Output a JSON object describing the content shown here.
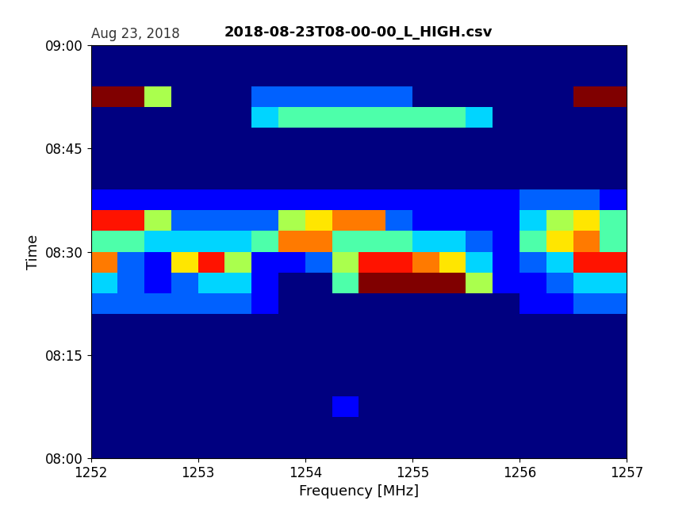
{
  "chart_data": {
    "type": "heatmap",
    "title": "2018-08-23T08-00-00_L_HIGH.csv",
    "subtitle": "Aug 23, 2018",
    "x_label": "Frequency [MHz]",
    "y_label": "Time",
    "xlim": [
      1252,
      1257
    ],
    "xticks": [
      1252,
      1253,
      1254,
      1255,
      1256,
      1257
    ],
    "ylim": [
      0,
      60
    ],
    "yticks": [
      {
        "value": 0,
        "label": "08:00"
      },
      {
        "value": 15,
        "label": "08:15"
      },
      {
        "value": 30,
        "label": "08:30"
      },
      {
        "value": 45,
        "label": "08:45"
      },
      {
        "value": 60,
        "label": "09:00"
      }
    ],
    "x": [
      1252.125,
      1252.375,
      1252.625,
      1252.875,
      1253.125,
      1253.375,
      1253.625,
      1253.875,
      1254.125,
      1254.375,
      1254.625,
      1254.875,
      1255.125,
      1255.375,
      1255.625,
      1255.875,
      1256.125,
      1256.375,
      1256.625,
      1256.875
    ],
    "y": [
      1.5,
      4.5,
      7.5,
      10.5,
      13.5,
      16.5,
      19.5,
      22.5,
      25.5,
      28.5,
      31.5,
      34.5,
      37.5,
      40.5,
      43.5,
      46.5,
      49.5,
      52.5,
      55.5,
      58.5
    ],
    "cells": [
      [
        1,
        1,
        1,
        1,
        1,
        1,
        1,
        1,
        1,
        1,
        1,
        1,
        1,
        1,
        1,
        1,
        1,
        1,
        1,
        1
      ],
      [
        1,
        1,
        1,
        1,
        1,
        1,
        1,
        1,
        1,
        1,
        1,
        1,
        1,
        1,
        1,
        1,
        1,
        1,
        1,
        1
      ],
      [
        1,
        1,
        1,
        1,
        1,
        1,
        1,
        1,
        1,
        2,
        1,
        1,
        1,
        1,
        1,
        1,
        1,
        1,
        1,
        1
      ],
      [
        1,
        1,
        1,
        1,
        1,
        1,
        1,
        1,
        1,
        1,
        1,
        1,
        1,
        1,
        1,
        1,
        1,
        1,
        1,
        1
      ],
      [
        1,
        1,
        1,
        1,
        1,
        1,
        1,
        1,
        1,
        1,
        1,
        1,
        1,
        1,
        1,
        1,
        1,
        1,
        1,
        1
      ],
      [
        1,
        1,
        1,
        1,
        1,
        1,
        1,
        1,
        1,
        1,
        1,
        1,
        1,
        1,
        1,
        1,
        1,
        1,
        1,
        1
      ],
      [
        1,
        1,
        1,
        1,
        1,
        1,
        1,
        1,
        1,
        1,
        1,
        1,
        1,
        1,
        1,
        1,
        1,
        1,
        1,
        1
      ],
      [
        3,
        3,
        3,
        3,
        3,
        3,
        2,
        1,
        1,
        1,
        1,
        1,
        1,
        1,
        1,
        1,
        2,
        2,
        3,
        3
      ],
      [
        4,
        3,
        2,
        3,
        4,
        4,
        2,
        1,
        1,
        5,
        10,
        10,
        10,
        10,
        6,
        2,
        2,
        3,
        4,
        4
      ],
      [
        8,
        3,
        2,
        7,
        9,
        6,
        2,
        2,
        3,
        6,
        9,
        9,
        8,
        7,
        4,
        2,
        3,
        4,
        9,
        9
      ],
      [
        5,
        5,
        4,
        4,
        4,
        4,
        5,
        8,
        8,
        5,
        5,
        5,
        4,
        4,
        3,
        2,
        5,
        7,
        8,
        5
      ],
      [
        9,
        9,
        6,
        3,
        3,
        3,
        3,
        6,
        7,
        8,
        8,
        3,
        2,
        2,
        2,
        2,
        4,
        6,
        7,
        5
      ],
      [
        2,
        2,
        2,
        2,
        2,
        2,
        2,
        2,
        2,
        2,
        2,
        2,
        2,
        2,
        2,
        2,
        3,
        3,
        3,
        2
      ],
      [
        1,
        1,
        1,
        1,
        1,
        1,
        1,
        1,
        1,
        1,
        1,
        1,
        1,
        1,
        1,
        1,
        1,
        1,
        1,
        1
      ],
      [
        1,
        1,
        1,
        1,
        1,
        1,
        1,
        1,
        1,
        1,
        1,
        1,
        1,
        1,
        1,
        1,
        1,
        1,
        1,
        1
      ],
      [
        1,
        1,
        1,
        1,
        1,
        1,
        1,
        1,
        1,
        1,
        1,
        1,
        1,
        1,
        1,
        1,
        1,
        1,
        1,
        1
      ],
      [
        1,
        1,
        1,
        1,
        1,
        1,
        4,
        5,
        5,
        5,
        5,
        5,
        5,
        5,
        4,
        1,
        1,
        1,
        1,
        1
      ],
      [
        10,
        10,
        6,
        1,
        1,
        1,
        3,
        3,
        3,
        3,
        3,
        3,
        1,
        1,
        1,
        1,
        1,
        1,
        10,
        10
      ],
      [
        1,
        1,
        1,
        1,
        1,
        1,
        1,
        1,
        1,
        1,
        1,
        1,
        1,
        1,
        1,
        1,
        1,
        1,
        1,
        1
      ],
      [
        1,
        1,
        1,
        1,
        1,
        1,
        1,
        1,
        1,
        1,
        1,
        1,
        1,
        1,
        1,
        1,
        1,
        1,
        1,
        1
      ]
    ]
  }
}
